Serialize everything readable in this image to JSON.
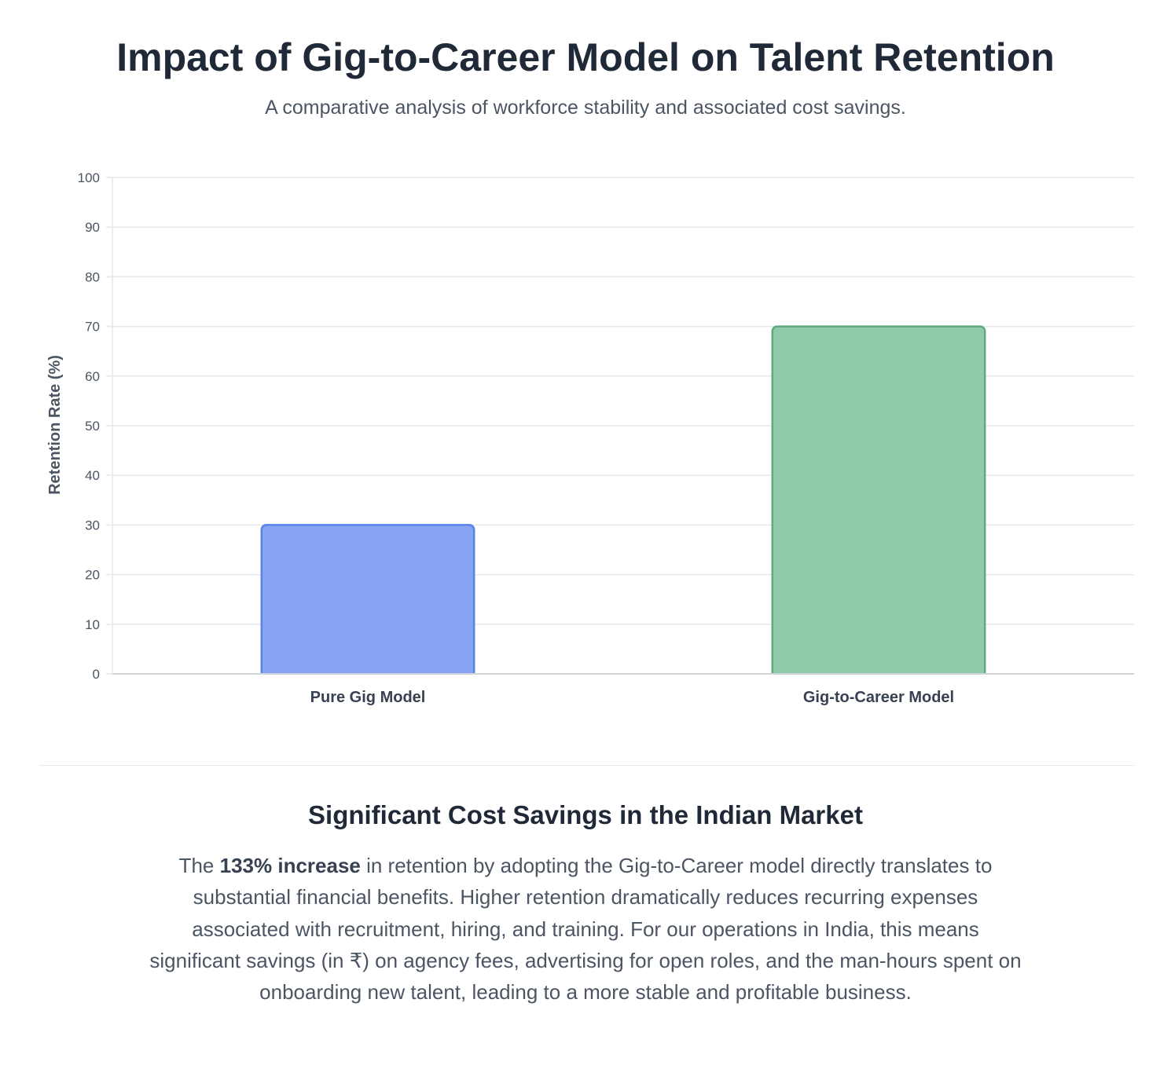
{
  "header": {
    "title": "Impact of Gig-to-Career Model on Talent Retention",
    "subtitle": "A comparative analysis of workforce stability and associated cost savings."
  },
  "chart_data": {
    "type": "bar",
    "categories": [
      "Pure Gig Model",
      "Gig-to-Career Model"
    ],
    "values": [
      30,
      70
    ],
    "ylabel": "Retention Rate (%)",
    "xlabel": "",
    "ylim": [
      0,
      100
    ],
    "yticks": [
      0,
      10,
      20,
      30,
      40,
      50,
      60,
      70,
      80,
      90,
      100
    ],
    "grid": true,
    "legend": "none",
    "colors": {
      "fills": [
        "#87a4f3",
        "#8fcba8"
      ],
      "strokes": [
        "#5b82e8",
        "#5faa7d"
      ]
    }
  },
  "savings": {
    "title": "Significant Cost Savings in the Indian Market",
    "body_before": "The ",
    "body_highlight": "133% increase",
    "body_after": " in retention by adopting the Gig-to-Career model directly translates to substantial financial benefits. Higher retention dramatically reduces recurring expenses associated with recruitment, hiring, and training. For our operations in India, this means significant savings (in ₹) on agency fees, advertising for open roles, and the man-hours spent on onboarding new talent, leading to a more stable and profitable business."
  }
}
